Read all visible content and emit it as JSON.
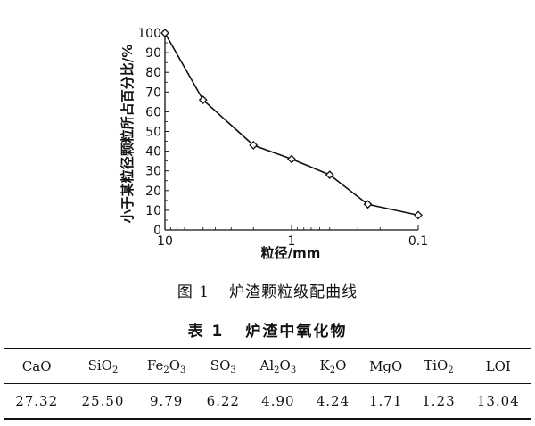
{
  "figure": {
    "number": "图 1",
    "title": "炉渣颗粒级配曲线"
  },
  "chart_data": {
    "type": "line",
    "ylabel": "小于某粒径颗粒所占百分比/%",
    "xlabel": "粒径/mm",
    "x_scale": "log",
    "x_reversed": true,
    "xlim": [
      10,
      0.1
    ],
    "ylim": [
      0,
      100
    ],
    "x_ticks": [
      "10",
      "1",
      "0.1"
    ],
    "y_ticks": [
      "0",
      "10",
      "20",
      "30",
      "40",
      "50",
      "60",
      "70",
      "80",
      "90",
      "100"
    ],
    "grid": false,
    "series": [
      {
        "x": [
          10,
          5,
          2,
          1,
          0.5,
          0.25,
          0.1
        ],
        "y": [
          100,
          66,
          43,
          36,
          28,
          13,
          7.5
        ],
        "marker": "diamond"
      }
    ]
  },
  "table": {
    "number": "表 1",
    "title": "炉渣中氧化物",
    "headers": [
      {
        "base": "CaO",
        "parts": [
          {
            "t": "CaO"
          }
        ]
      },
      {
        "base": "SiO2",
        "parts": [
          {
            "t": "SiO"
          },
          {
            "t": "2",
            "sub": true
          }
        ]
      },
      {
        "base": "Fe2O3",
        "parts": [
          {
            "t": "Fe"
          },
          {
            "t": "2",
            "sub": true
          },
          {
            "t": "O"
          },
          {
            "t": "3",
            "sub": true
          }
        ]
      },
      {
        "base": "SO3",
        "parts": [
          {
            "t": "SO"
          },
          {
            "t": "3",
            "sub": true
          }
        ]
      },
      {
        "base": "Al2O3",
        "parts": [
          {
            "t": "Al"
          },
          {
            "t": "2",
            "sub": true
          },
          {
            "t": "O"
          },
          {
            "t": "3",
            "sub": true
          }
        ]
      },
      {
        "base": "K2O",
        "parts": [
          {
            "t": "K"
          },
          {
            "t": "2",
            "sub": true
          },
          {
            "t": "O"
          }
        ]
      },
      {
        "base": "MgO",
        "parts": [
          {
            "t": "MgO"
          }
        ]
      },
      {
        "base": "TiO2",
        "parts": [
          {
            "t": "TiO"
          },
          {
            "t": "2",
            "sub": true
          }
        ]
      },
      {
        "base": "LOI",
        "parts": [
          {
            "t": "LOI"
          }
        ]
      }
    ],
    "values": [
      "27.32",
      "25.50",
      "9.79",
      "6.22",
      "4.90",
      "4.24",
      "1.71",
      "1.23",
      "13.04"
    ]
  }
}
